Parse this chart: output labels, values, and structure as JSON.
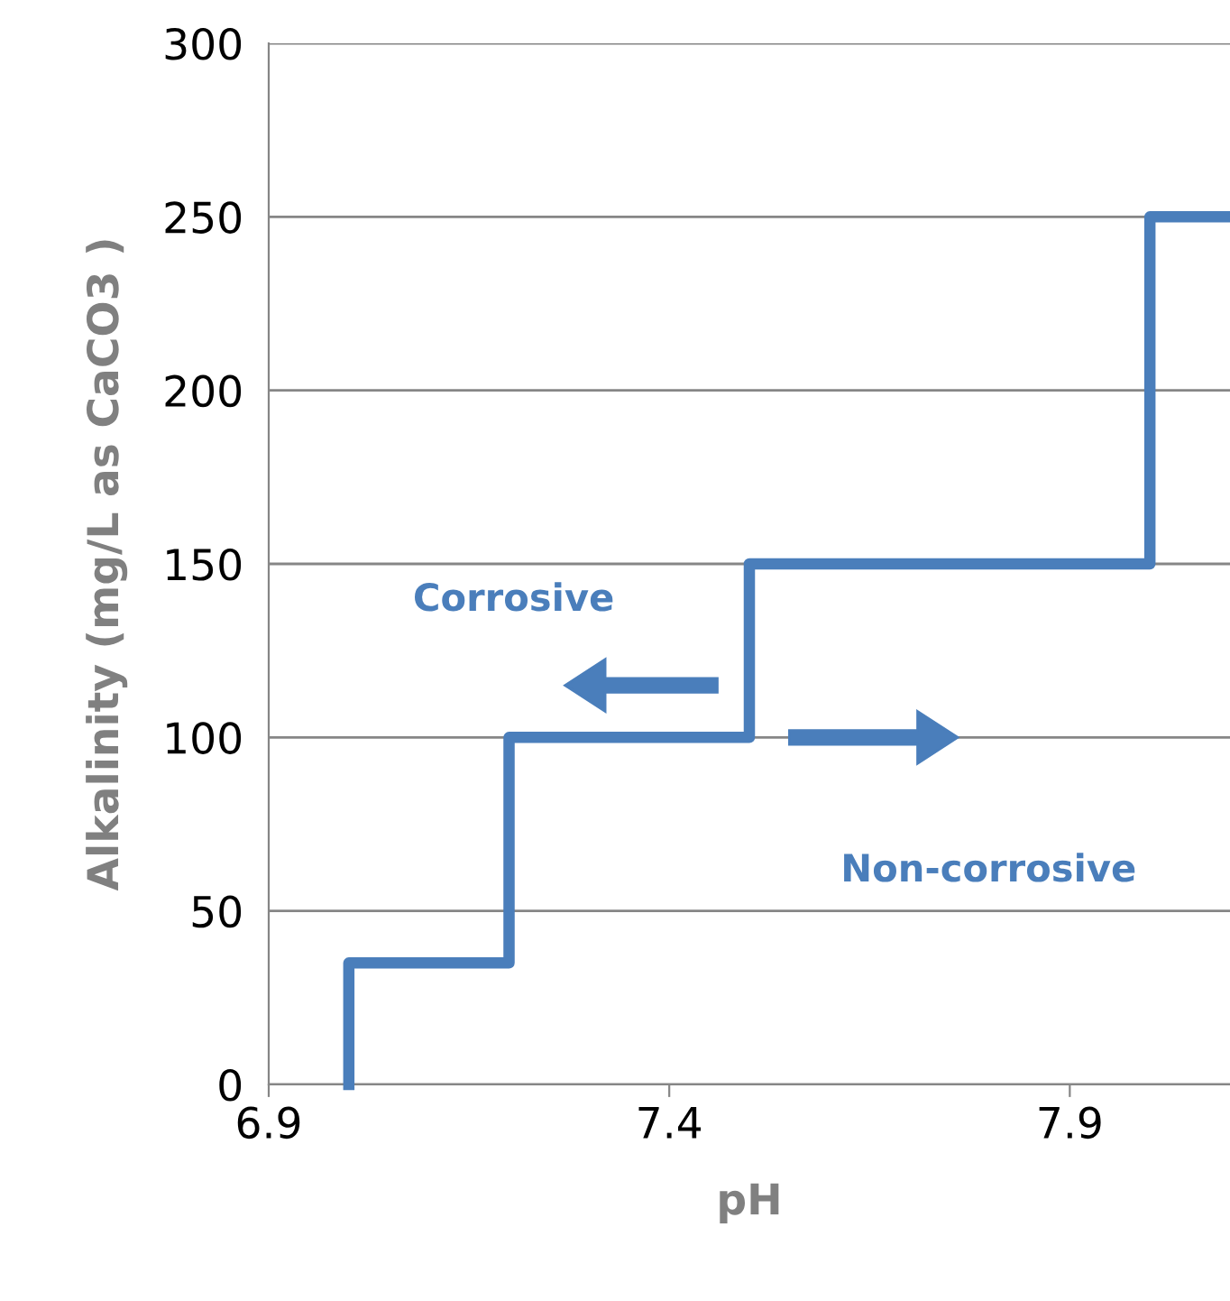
{
  "chart_data": {
    "type": "line",
    "xlabel": "pH",
    "ylabel": "Alkalinity (mg/L as CaCO3 )",
    "series": [
      {
        "color": "#4a7ebb",
        "x": [
          7.0,
          7.0,
          7.2,
          7.2,
          7.5,
          7.5,
          8.0,
          8.0,
          8.1
        ],
        "values": [
          0,
          35,
          35,
          100,
          100,
          150,
          150,
          250,
          250
        ]
      }
    ],
    "xlim": [
      6.9,
      8.1
    ],
    "xticks": [
      6.9,
      7.4,
      7.9
    ],
    "ylim": [
      0,
      300
    ],
    "yticks": [
      0,
      50,
      100,
      150,
      200,
      250,
      300
    ],
    "grid": "y",
    "marker": "none",
    "line_style": "solid",
    "annotations": [
      "Corrosive",
      "Non-corrosive"
    ]
  }
}
